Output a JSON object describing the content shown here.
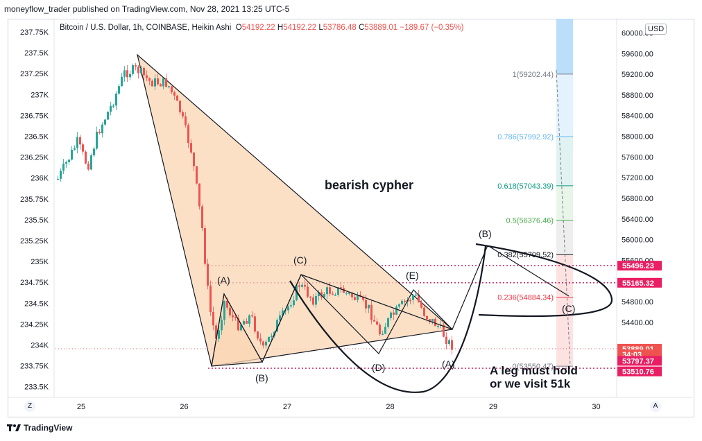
{
  "header": {
    "text": "moneyflow_trader published on TradingView.com, Nov 28, 2021 13:25 UTC-5"
  },
  "legend": {
    "title": "Bitcoin / U.S. Dollar, 1h, COINBASE, Heikin Ashi",
    "o_label": "O",
    "o": "54192.22",
    "h_label": "H",
    "h": "54192.22",
    "l_label": "L",
    "l": "53786.48",
    "c_label": "C",
    "c": "53889.01",
    "change": "−189.67 (−0.35%)"
  },
  "currency_button": "USD",
  "z_button": "Z",
  "a_button": "A",
  "footer": {
    "brand": "TradingView",
    "logo": "tradingview-logo-icon"
  },
  "colors": {
    "up": "#26a69a",
    "down": "#ef5350",
    "pattern_fill": "#fad5b3",
    "red_line": "#c2185b"
  },
  "chart_data": {
    "type": "candlestick",
    "chart_type_note": "Heikin Ashi",
    "x_ticks": [
      "25",
      "26",
      "27",
      "28",
      "29",
      "30"
    ],
    "left_axis": {
      "ticks": [
        "237.75K",
        "237.5K",
        "237.25K",
        "237K",
        "236.75K",
        "236.5K",
        "236.25K",
        "236K",
        "235.75K",
        "235.5K",
        "235.25K",
        "235K",
        "234.75K",
        "234.5K",
        "234.25K",
        "234K",
        "233.75K",
        "233.5K"
      ]
    },
    "right_axis": {
      "ticks": [
        "60000.00",
        "59600.00",
        "59200.00",
        "58800.00",
        "58400.00",
        "58000.00",
        "57600.00",
        "57200.00",
        "56800.00",
        "56400.00",
        "56000.00",
        "55600.00",
        "54800.00",
        "54400.00"
      ],
      "range": [
        53150,
        60100
      ],
      "badges": [
        {
          "text": "55496.23",
          "value": 55496.23,
          "color": "#e91e63"
        },
        {
          "text": "55165.32",
          "value": 55165.32,
          "color": "#e91e63"
        },
        {
          "text": "53889.01",
          "value": 53889.01,
          "color": "#ef5350"
        },
        {
          "text": "34:03",
          "value": 53780,
          "color": "#ef5350"
        },
        {
          "text": "53797.37",
          "value": 53655,
          "color": "#e91e63"
        },
        {
          "text": "53510.76",
          "value": 53450,
          "color": "#e91e63"
        }
      ]
    },
    "horizontal_lines": [
      55496.23,
      55165.32,
      53510.76
    ],
    "current_price": 53889.01,
    "fibonacci": [
      {
        "ratio": "1",
        "price": "59202.44",
        "label": "1(59202.44)",
        "value": 59202.44,
        "color": "#787b86",
        "fill": "#d1d4dc"
      },
      {
        "ratio": "0.786",
        "price": "57992.92",
        "label": "0.786(57992.92)",
        "value": 57992.92,
        "color": "#64b5f6",
        "fill": "#e3f2fd"
      },
      {
        "ratio": "0.618",
        "price": "57043.39",
        "label": "0.618(57043.39)",
        "value": 57043.39,
        "color": "#089981",
        "fill": "#e0f2f1"
      },
      {
        "ratio": "0.5",
        "price": "56376.46",
        "label": "0.5(56376.46)",
        "value": 56376.46,
        "color": "#4caf50",
        "fill": "#e8f5e9"
      },
      {
        "ratio": "0.382",
        "price": "55709.52",
        "label": "0.382(55709.52)",
        "value": 55709.52,
        "color": "#131722",
        "fill": "#eeeeee"
      },
      {
        "ratio": "0.236",
        "price": "54884.34",
        "label": "0.236(54884.34)",
        "value": 54884.34,
        "color": "#f23645",
        "fill": "#fde2e2"
      },
      {
        "ratio": "0",
        "price": "53550.47",
        "label": "0(53550.47)",
        "value": 53550.47,
        "color": "#787b86",
        "fill": "#fde2e2"
      }
    ],
    "pattern_labels": [
      "(A)",
      "(B)",
      "(C)",
      "(D)",
      "(E)",
      "(A)",
      "(B)",
      "(C)"
    ],
    "annotations": {
      "pattern_title": "bearish cypher",
      "note_line1": "A leg must hold",
      "note_line2": "or we visit 51k"
    }
  }
}
